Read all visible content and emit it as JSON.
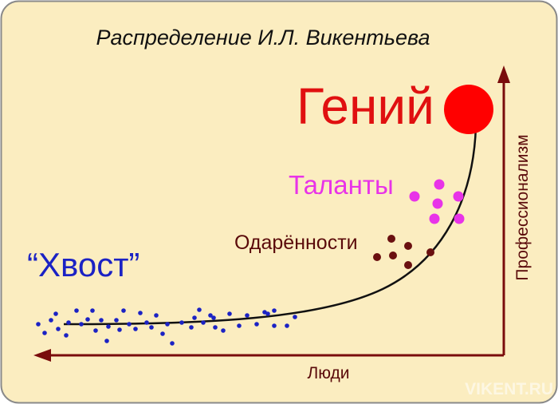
{
  "title": "Распределение И.Л. Викентьева",
  "labels": {
    "genius": "Гений",
    "talents": "Таланты",
    "gifted": "Одарённости",
    "tail": "“Хвост”"
  },
  "axes": {
    "x_label": "Люди",
    "y_label": "Профессионализм"
  },
  "watermark": "VIKENT.RU",
  "colors": {
    "background": "#fbedc0",
    "border": "#8a8a8a",
    "axis": "#7a0c0c",
    "curve": "#111111",
    "genius": "#ff0000",
    "talents": "#e833e8",
    "gifted": "#6a1010",
    "tail": "#1b22c4"
  }
}
